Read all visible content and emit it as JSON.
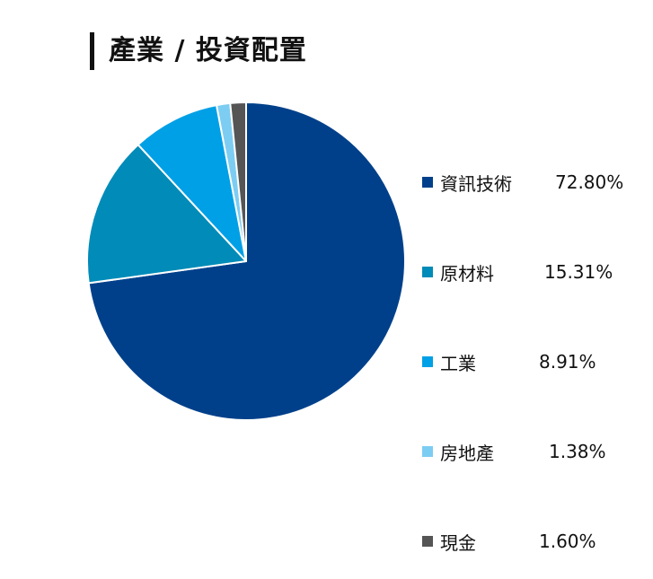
{
  "title": "產業 / 投資配置",
  "chart_data": {
    "type": "pie",
    "title": "產業 / 投資配置",
    "legend_position": "right",
    "slices": [
      {
        "label": "資訊技術",
        "value": 72.8,
        "display": "72.80%",
        "color": "#00408A"
      },
      {
        "label": "原材料",
        "value": 15.31,
        "display": "15.31%",
        "color": "#008BB8"
      },
      {
        "label": "工業",
        "value": 8.91,
        "display": "8.91%",
        "color": "#00A0E6"
      },
      {
        "label": "房地產",
        "value": 1.38,
        "display": "1.38%",
        "color": "#7DCDF2"
      },
      {
        "label": "現金",
        "value": 1.6,
        "display": "1.60%",
        "color": "#555555"
      }
    ]
  }
}
